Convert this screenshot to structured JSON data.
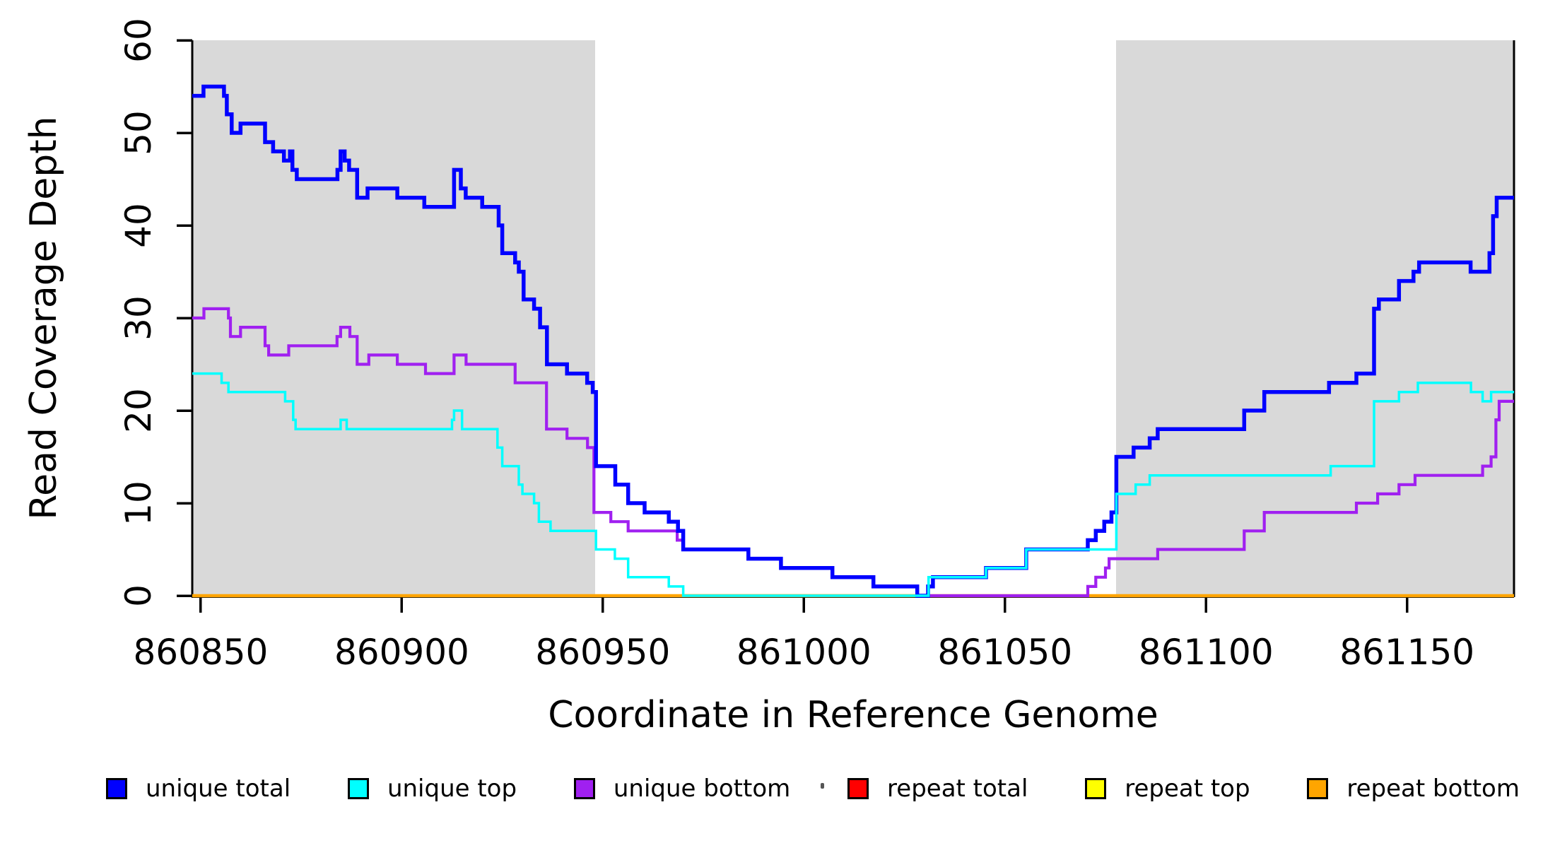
{
  "chart_data": {
    "type": "step-line",
    "title": "",
    "xlabel": "Coordinate in Reference Genome",
    "ylabel": "Read Coverage Depth",
    "xlim": [
      860847.9,
      861176.6
    ],
    "ylim": [
      0,
      60
    ],
    "grid": false,
    "xticks": {
      "values": [
        860850,
        860900,
        860950,
        861000,
        861050,
        861100,
        861150
      ],
      "labels": [
        "860850",
        "860900",
        "860950",
        "861000",
        "861050",
        "861100",
        "861150"
      ]
    },
    "yticks": {
      "values": [
        0,
        10,
        20,
        30,
        40,
        50,
        60
      ],
      "labels": [
        "0",
        "10",
        "20",
        "30",
        "40",
        "50",
        "60"
      ]
    },
    "shaded_regions": [
      {
        "from": 860847.9,
        "to": 860948.1,
        "color": "#D9D9D9"
      },
      {
        "from": 861077.6,
        "to": 861176.6,
        "color": "#D9D9D9"
      }
    ],
    "legend": {
      "position": "bottom",
      "entries": [
        {
          "label": "unique total",
          "color": "#0000FF"
        },
        {
          "label": "unique top",
          "color": "#00FFFF"
        },
        {
          "label": "unique bottom",
          "color": "#A020F0"
        },
        {
          "label": "repeat total",
          "color": "#FF0000"
        },
        {
          "label": "repeat top",
          "color": "#FFFF00"
        },
        {
          "label": "repeat bottom",
          "color": "#FFA500"
        }
      ]
    },
    "series": [
      {
        "name": "repeat total",
        "color": "#FF0000",
        "width": 3,
        "points": [
          [
            860847.9,
            0
          ],
          [
            861176.6,
            0
          ]
        ]
      },
      {
        "name": "repeat top",
        "color": "#FFFF00",
        "width": 3,
        "points": [
          [
            860847.9,
            0
          ],
          [
            861176.6,
            0
          ]
        ]
      },
      {
        "name": "repeat bottom",
        "color": "#FFA500",
        "width": 4.5,
        "points": [
          [
            860847.9,
            0
          ],
          [
            861176.6,
            0
          ]
        ]
      },
      {
        "name": "unique bottom",
        "color": "#A020F0",
        "width": 4.2,
        "points": [
          [
            860847.9,
            30
          ],
          [
            860850.8,
            31
          ],
          [
            860856.9,
            30
          ],
          [
            860857.4,
            28
          ],
          [
            860859.9,
            29
          ],
          [
            860866,
            27
          ],
          [
            860866.9,
            26
          ],
          [
            860871.9,
            27
          ],
          [
            860883.9,
            28
          ],
          [
            860884.8,
            29
          ],
          [
            860887.1,
            28
          ],
          [
            860888.9,
            25
          ],
          [
            860891.8,
            26
          ],
          [
            860898.9,
            25
          ],
          [
            860905.9,
            24
          ],
          [
            860913,
            26
          ],
          [
            860916,
            25
          ],
          [
            860928.2,
            23
          ],
          [
            860936,
            18
          ],
          [
            860941.1,
            17
          ],
          [
            860946.2,
            16
          ],
          [
            860947.8,
            9
          ],
          [
            860952,
            8
          ],
          [
            860956.3,
            7
          ],
          [
            860968.5,
            6
          ],
          [
            860970,
            5
          ],
          [
            860986.2,
            4
          ],
          [
            860994.3,
            3
          ],
          [
            861007.1,
            2
          ],
          [
            861017.3,
            1
          ],
          [
            861028.2,
            0
          ],
          [
            861070.6,
            1
          ],
          [
            861072.6,
            2
          ],
          [
            861075,
            3
          ],
          [
            861075.9,
            4
          ],
          [
            861088,
            5
          ],
          [
            861109.5,
            7
          ],
          [
            861114.5,
            9
          ],
          [
            861137.4,
            10
          ],
          [
            861142.7,
            11
          ],
          [
            861148,
            12
          ],
          [
            861152,
            13
          ],
          [
            861168.8,
            14
          ],
          [
            861170.9,
            15
          ],
          [
            861172.1,
            19
          ],
          [
            861172.9,
            21
          ],
          [
            861176.6,
            21
          ]
        ]
      },
      {
        "name": "unique total",
        "color": "#0000FF",
        "width": 5.5,
        "points": [
          [
            860847.9,
            54
          ],
          [
            860850.7,
            55
          ],
          [
            860855.8,
            54
          ],
          [
            860856.5,
            52
          ],
          [
            860857.7,
            50
          ],
          [
            860859.9,
            51
          ],
          [
            860866,
            49
          ],
          [
            860868,
            48
          ],
          [
            860870.7,
            47
          ],
          [
            860872.2,
            48
          ],
          [
            860872.8,
            46
          ],
          [
            860873.9,
            45
          ],
          [
            860884,
            46
          ],
          [
            860884.8,
            48
          ],
          [
            860885.8,
            47
          ],
          [
            860886.9,
            46
          ],
          [
            860888.9,
            43
          ],
          [
            860891.5,
            44
          ],
          [
            860898.9,
            43
          ],
          [
            860905.6,
            42
          ],
          [
            860913,
            46
          ],
          [
            860914.7,
            44
          ],
          [
            860915.9,
            43
          ],
          [
            860920,
            42
          ],
          [
            860924.1,
            40
          ],
          [
            860925,
            37
          ],
          [
            860928.2,
            36
          ],
          [
            860929.1,
            35
          ],
          [
            860930.3,
            32
          ],
          [
            860932.9,
            31
          ],
          [
            860934.4,
            29
          ],
          [
            860936.1,
            25
          ],
          [
            860941.1,
            24
          ],
          [
            860946.1,
            23
          ],
          [
            860947.5,
            22
          ],
          [
            860948.3,
            14
          ],
          [
            860953.1,
            12
          ],
          [
            860956.3,
            10
          ],
          [
            860960.4,
            9
          ],
          [
            860966.4,
            8
          ],
          [
            860968.7,
            7
          ],
          [
            860970,
            5
          ],
          [
            860986.2,
            4
          ],
          [
            860994.3,
            3
          ],
          [
            861007.1,
            2
          ],
          [
            861017.3,
            1
          ],
          [
            861028.2,
            0
          ],
          [
            861030.9,
            1
          ],
          [
            861032.1,
            2
          ],
          [
            861045.3,
            3
          ],
          [
            861055.3,
            5
          ],
          [
            861070.6,
            6
          ],
          [
            861072.6,
            7
          ],
          [
            861074.7,
            8
          ],
          [
            861076.5,
            9
          ],
          [
            861077.7,
            15
          ],
          [
            861082,
            16
          ],
          [
            861086,
            17
          ],
          [
            861088,
            18
          ],
          [
            861109.5,
            20
          ],
          [
            861114.5,
            22
          ],
          [
            861130.6,
            23
          ],
          [
            861137.4,
            24
          ],
          [
            861141.8,
            31
          ],
          [
            861143,
            32
          ],
          [
            861148,
            34
          ],
          [
            861151.6,
            35
          ],
          [
            861153,
            36
          ],
          [
            861165.8,
            35
          ],
          [
            861170.5,
            37
          ],
          [
            861171.4,
            41
          ],
          [
            861172.3,
            43
          ],
          [
            861176.6,
            43
          ]
        ]
      },
      {
        "name": "unique top",
        "color": "#00FFFF",
        "width": 3.5,
        "points": [
          [
            860847.9,
            24
          ],
          [
            860855.2,
            23
          ],
          [
            860856.9,
            22
          ],
          [
            860871,
            21
          ],
          [
            860873,
            19
          ],
          [
            860873.6,
            18
          ],
          [
            860884.8,
            19
          ],
          [
            860886.3,
            18
          ],
          [
            860912.5,
            19
          ],
          [
            860913,
            20
          ],
          [
            860915,
            18
          ],
          [
            860923.8,
            16
          ],
          [
            860925,
            14
          ],
          [
            860929.1,
            12
          ],
          [
            860930,
            11
          ],
          [
            860932.9,
            10
          ],
          [
            860934.1,
            8
          ],
          [
            860937,
            7
          ],
          [
            860948.3,
            5
          ],
          [
            860953,
            4
          ],
          [
            860956.3,
            2
          ],
          [
            860966.4,
            1
          ],
          [
            860970,
            0
          ],
          [
            861031,
            2
          ],
          [
            861045.3,
            3
          ],
          [
            861055.3,
            5
          ],
          [
            861077.7,
            11
          ],
          [
            861082.5,
            12
          ],
          [
            861086,
            13
          ],
          [
            861131,
            14
          ],
          [
            861141.8,
            21
          ],
          [
            861148,
            22
          ],
          [
            861152.7,
            23
          ],
          [
            861165.9,
            22
          ],
          [
            861168.8,
            21
          ],
          [
            861170.9,
            22
          ],
          [
            861176.6,
            22
          ]
        ]
      }
    ]
  }
}
